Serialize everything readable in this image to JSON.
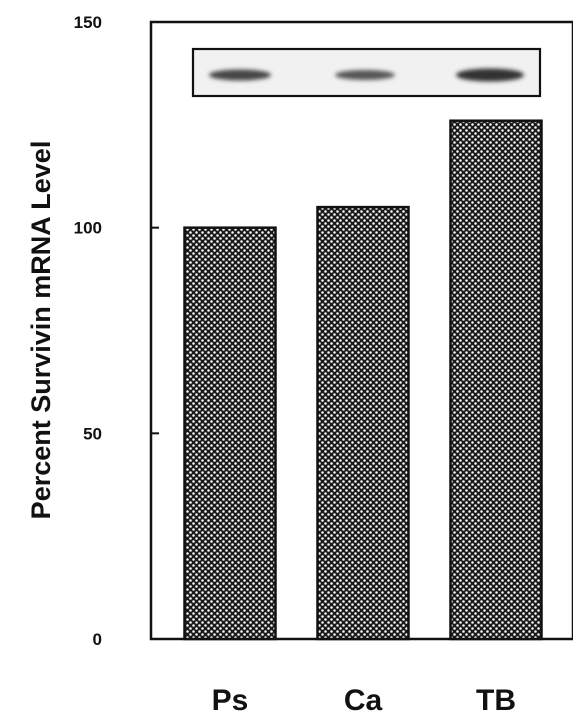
{
  "chart_data": {
    "type": "bar",
    "categories": [
      "Ps",
      "Ca",
      "TB"
    ],
    "values": [
      100,
      105,
      126
    ],
    "ylabel": "Percent Survivin mRNA Level",
    "ylim": [
      0,
      150
    ],
    "yticks": [
      0,
      50,
      100,
      150
    ],
    "grid": false,
    "inset": {
      "description": "blot image",
      "bands": [
        "Ps",
        "Ca",
        "TB"
      ]
    },
    "colors": {
      "bar_fill": "#1a1a1a",
      "bar_dots": "#ffffff",
      "axis": "#111111"
    }
  }
}
